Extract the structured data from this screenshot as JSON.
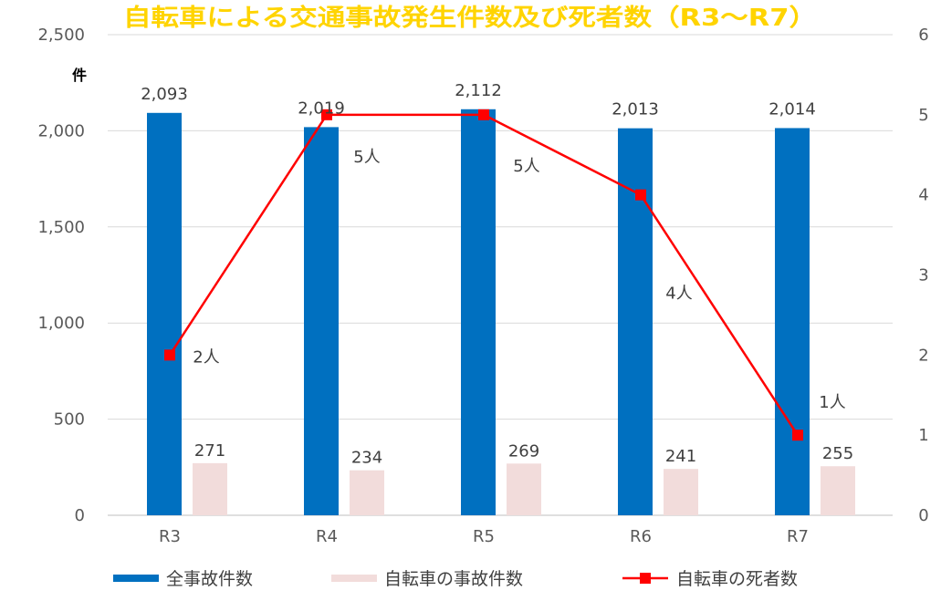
{
  "header": {
    "title": "自転車による交通事故発生件数及び死者数（R3〜R7）"
  },
  "chart_data": {
    "type": "bar",
    "categories": [
      "R3",
      "R4",
      "R5",
      "R6",
      "R7"
    ],
    "y_left": {
      "ylim": [
        0,
        2500
      ],
      "ticks": [
        "0",
        "500",
        "1,000",
        "1,500",
        "2,000",
        "2,500"
      ],
      "unit": "件"
    },
    "y_right": {
      "ylim": [
        0,
        6
      ],
      "ticks": [
        "0",
        "1",
        "2",
        "3",
        "4",
        "5",
        "6"
      ]
    },
    "series": [
      {
        "name": "全事故件数",
        "type": "bar",
        "axis": "left",
        "color": "#0070c0",
        "values": [
          2093,
          2019,
          2112,
          2013,
          2014
        ],
        "labels": [
          "2,093",
          "2,019",
          "2,112",
          "2,013",
          "2,014"
        ]
      },
      {
        "name": "自転車の事故件数",
        "type": "bar",
        "axis": "left",
        "color": "#f2dcdb",
        "values": [
          271,
          234,
          269,
          241,
          255
        ],
        "labels": [
          "271",
          "234",
          "269",
          "241",
          "255"
        ]
      },
      {
        "name": "自転車の死者数",
        "type": "line",
        "axis": "right",
        "color": "#ff0000",
        "marker": "square",
        "values": [
          2,
          5,
          5,
          4,
          1
        ],
        "labels": [
          "2人",
          "5人",
          "5人",
          "4人",
          "1人"
        ]
      }
    ],
    "grid": true,
    "legend": "bottom"
  }
}
